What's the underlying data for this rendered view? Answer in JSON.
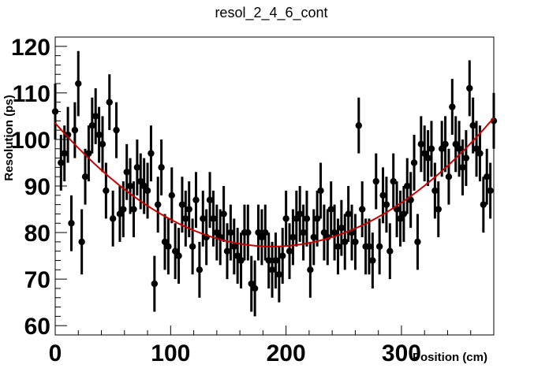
{
  "chart_data": {
    "type": "scatter",
    "title": "resol_2_4_6_cont",
    "xlabel": "Position (cm)",
    "ylabel": "Resolution (ps)",
    "xlim": [
      0,
      380
    ],
    "ylim": [
      58,
      122
    ],
    "x_ticks": [
      0,
      100,
      200,
      300
    ],
    "y_ticks": [
      60,
      70,
      80,
      90,
      100,
      110,
      120
    ],
    "grid": false,
    "marker_color": "#000000",
    "fit_color": "#cc0000",
    "fit": {
      "type": "parabola",
      "vertex_x": 188,
      "vertex_y": 77,
      "coef": 0.00075
    },
    "points": [
      [
        0,
        106,
        6
      ],
      [
        5,
        95,
        6
      ],
      [
        8,
        97,
        6
      ],
      [
        11,
        101,
        6
      ],
      [
        14,
        82,
        6
      ],
      [
        17,
        102,
        6
      ],
      [
        20,
        112,
        7
      ],
      [
        23,
        78,
        7
      ],
      [
        26,
        92,
        6
      ],
      [
        29,
        97,
        6
      ],
      [
        32,
        103,
        6
      ],
      [
        35,
        105,
        6
      ],
      [
        38,
        101,
        6
      ],
      [
        41,
        99,
        6
      ],
      [
        44,
        89,
        6
      ],
      [
        47,
        108,
        6
      ],
      [
        50,
        83,
        6
      ],
      [
        53,
        102,
        6
      ],
      [
        56,
        84,
        6
      ],
      [
        59,
        85,
        6
      ],
      [
        62,
        93,
        6
      ],
      [
        65,
        90,
        6
      ],
      [
        68,
        85,
        6
      ],
      [
        71,
        94,
        6
      ],
      [
        74,
        91,
        6
      ],
      [
        77,
        90,
        6
      ],
      [
        80,
        89,
        6
      ],
      [
        83,
        97,
        6
      ],
      [
        86,
        69,
        6
      ],
      [
        89,
        86,
        6
      ],
      [
        92,
        94,
        6
      ],
      [
        95,
        78,
        6
      ],
      [
        98,
        77,
        6
      ],
      [
        101,
        88,
        6
      ],
      [
        104,
        76,
        6
      ],
      [
        107,
        75,
        6
      ],
      [
        110,
        86,
        6
      ],
      [
        113,
        83,
        6
      ],
      [
        116,
        85,
        6
      ],
      [
        119,
        77,
        6
      ],
      [
        122,
        87,
        6
      ],
      [
        125,
        72,
        6
      ],
      [
        128,
        83,
        6
      ],
      [
        131,
        79,
        6
      ],
      [
        134,
        87,
        6
      ],
      [
        137,
        83,
        6
      ],
      [
        140,
        80,
        6
      ],
      [
        143,
        79,
        6
      ],
      [
        146,
        84,
        6
      ],
      [
        149,
        76,
        6
      ],
      [
        152,
        80,
        6
      ],
      [
        155,
        77,
        6
      ],
      [
        158,
        75,
        6
      ],
      [
        161,
        74,
        6
      ],
      [
        164,
        80,
        6
      ],
      [
        167,
        80,
        6
      ],
      [
        170,
        69,
        6
      ],
      [
        173,
        68,
        6
      ],
      [
        176,
        80,
        6
      ],
      [
        179,
        79,
        6
      ],
      [
        182,
        80,
        6
      ],
      [
        185,
        74,
        6
      ],
      [
        188,
        72,
        6
      ],
      [
        191,
        74,
        6
      ],
      [
        194,
        71,
        6
      ],
      [
        197,
        75,
        6
      ],
      [
        200,
        83,
        6
      ],
      [
        203,
        76,
        6
      ],
      [
        206,
        79,
        6
      ],
      [
        209,
        83,
        6
      ],
      [
        212,
        84,
        6
      ],
      [
        215,
        80,
        6
      ],
      [
        218,
        83,
        6
      ],
      [
        221,
        72,
        6
      ],
      [
        224,
        79,
        6
      ],
      [
        227,
        83,
        6
      ],
      [
        230,
        89,
        6
      ],
      [
        233,
        80,
        6
      ],
      [
        236,
        79,
        6
      ],
      [
        239,
        85,
        6
      ],
      [
        242,
        80,
        6
      ],
      [
        245,
        77,
        6
      ],
      [
        248,
        81,
        6
      ],
      [
        251,
        78,
        6
      ],
      [
        254,
        84,
        6
      ],
      [
        257,
        80,
        6
      ],
      [
        260,
        78,
        6
      ],
      [
        263,
        103,
        6
      ],
      [
        266,
        85,
        6
      ],
      [
        269,
        77,
        6
      ],
      [
        272,
        77,
        6
      ],
      [
        275,
        74,
        6
      ],
      [
        278,
        91,
        6
      ],
      [
        281,
        77,
        6
      ],
      [
        284,
        88,
        6
      ],
      [
        287,
        86,
        6
      ],
      [
        290,
        76,
        6
      ],
      [
        293,
        91,
        6
      ],
      [
        296,
        85,
        6
      ],
      [
        299,
        83,
        6
      ],
      [
        302,
        84,
        6
      ],
      [
        305,
        90,
        6
      ],
      [
        308,
        87,
        6
      ],
      [
        311,
        95,
        6
      ],
      [
        314,
        78,
        6
      ],
      [
        317,
        99,
        6
      ],
      [
        320,
        97,
        6
      ],
      [
        323,
        96,
        6
      ],
      [
        326,
        98,
        6
      ],
      [
        329,
        89,
        6
      ],
      [
        332,
        85,
        6
      ],
      [
        335,
        98,
        6
      ],
      [
        338,
        99,
        6
      ],
      [
        341,
        92,
        6
      ],
      [
        344,
        107,
        6
      ],
      [
        347,
        99,
        6
      ],
      [
        350,
        98,
        6
      ],
      [
        353,
        94,
        6
      ],
      [
        356,
        96,
        6
      ],
      [
        359,
        111,
        6
      ],
      [
        362,
        103,
        6
      ],
      [
        365,
        98,
        6
      ],
      [
        368,
        97,
        6
      ],
      [
        371,
        86,
        6
      ],
      [
        374,
        92,
        6
      ],
      [
        377,
        89,
        6
      ],
      [
        380,
        104,
        6
      ]
    ]
  }
}
